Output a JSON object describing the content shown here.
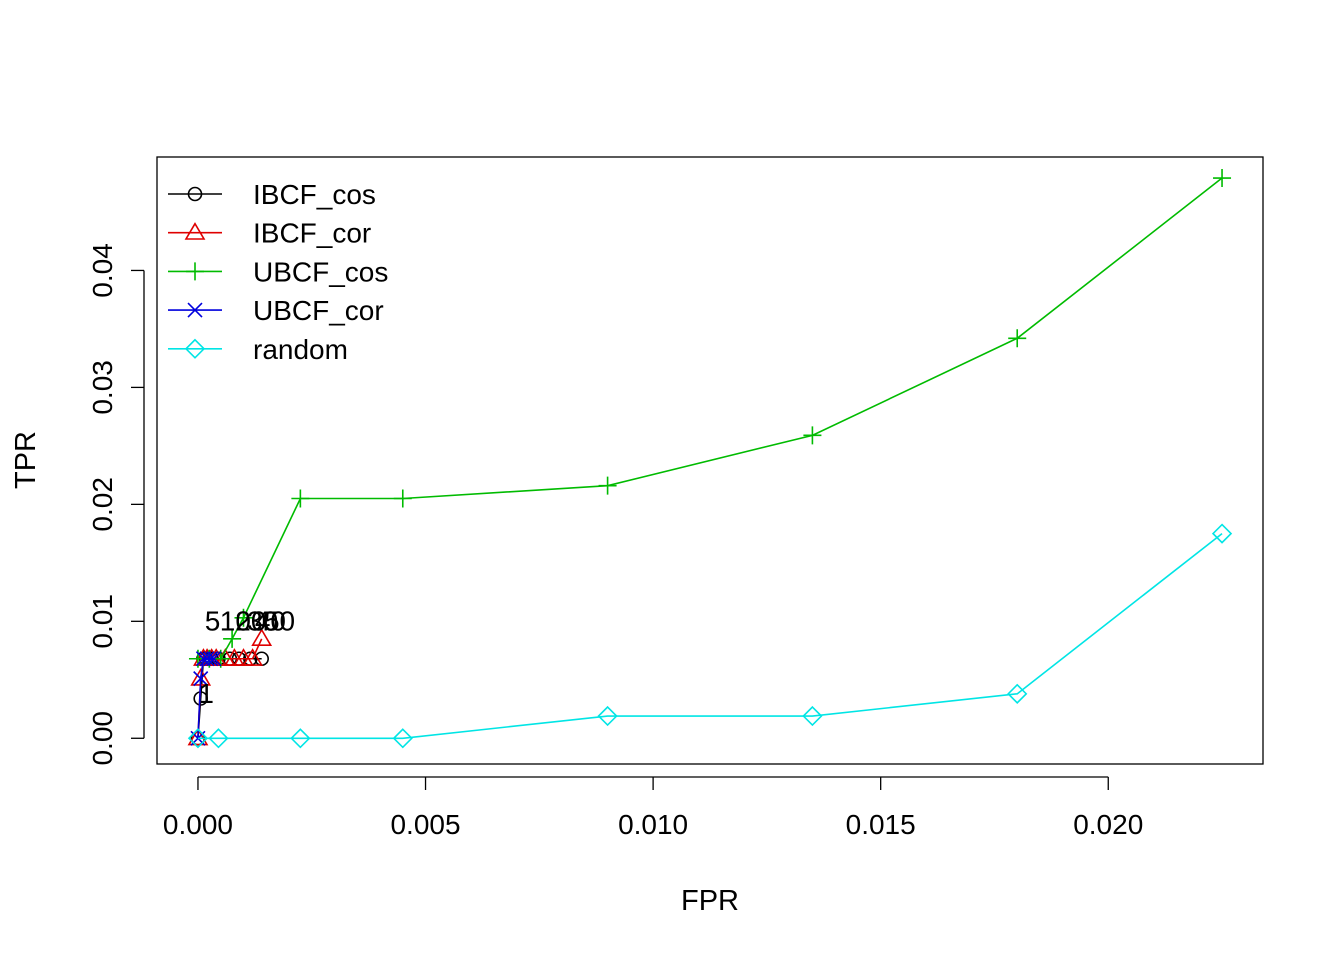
{
  "chart_data": {
    "type": "line",
    "title": "",
    "xlabel": "FPR",
    "ylabel": "TPR",
    "xlim": [
      -0.0009,
      0.0234
    ],
    "ylim": [
      -0.0022,
      0.0497
    ],
    "xticks": [
      0.0,
      0.005,
      0.01,
      0.015,
      0.02
    ],
    "xtick_labels": [
      "0.000",
      "0.005",
      "0.010",
      "0.015",
      "0.020"
    ],
    "yticks": [
      0.0,
      0.01,
      0.02,
      0.03,
      0.04
    ],
    "ytick_labels": [
      "0.00",
      "0.01",
      "0.02",
      "0.03",
      "0.04"
    ],
    "grid": false,
    "legend": "top-left",
    "series": [
      {
        "name": "IBCF_cos",
        "color": "#000000",
        "marker": "circle",
        "x": [
          0.0,
          6e-05,
          0.00012,
          0.00018,
          0.00025,
          0.0003,
          0.00045,
          0.0007,
          0.0009,
          0.00115,
          0.0014
        ],
        "y": [
          0.0,
          0.0034,
          0.0068,
          0.0068,
          0.0068,
          0.0068,
          0.0068,
          0.0068,
          0.0068,
          0.0068,
          0.0068
        ]
      },
      {
        "name": "IBCF_cor",
        "color": "#DF0000",
        "marker": "triangle",
        "x": [
          0.0,
          6e-05,
          0.00012,
          0.0002,
          0.0003,
          0.0004,
          0.0006,
          0.0008,
          0.001,
          0.0012,
          0.0014
        ],
        "y": [
          0.0,
          0.0051,
          0.0068,
          0.0068,
          0.0068,
          0.0068,
          0.0068,
          0.0068,
          0.0068,
          0.0068,
          0.0085
        ]
      },
      {
        "name": "UBCF_cos",
        "color": "#00BB00",
        "marker": "plus",
        "x": [
          0.0,
          0.00025,
          0.0005,
          0.00075,
          0.001,
          0.00225,
          0.0045,
          0.009,
          0.0135,
          0.018,
          0.0225
        ],
        "y": [
          0.0068,
          0.0068,
          0.0068,
          0.0085,
          0.0103,
          0.0205,
          0.0205,
          0.0216,
          0.0259,
          0.0342,
          0.0479
        ]
      },
      {
        "name": "UBCF_cor",
        "color": "#0000DD",
        "marker": "cross",
        "x": [
          0.0,
          6e-05,
          0.00012,
          0.0002,
          0.00028,
          0.00035
        ],
        "y": [
          0.0,
          0.0051,
          0.0068,
          0.0068,
          0.0068,
          0.0068
        ]
      },
      {
        "name": "random",
        "color": "#00E5E5",
        "marker": "diamond",
        "x": [
          0.0,
          0.00045,
          0.00225,
          0.0045,
          0.009,
          0.0135,
          0.018,
          0.0225
        ],
        "y": [
          0.0,
          0.0,
          0.0,
          0.0,
          0.0019,
          0.0019,
          0.0038,
          0.0175
        ]
      }
    ],
    "annotations": [
      {
        "text": "1",
        "x": 1e-05,
        "y": 0.003
      },
      {
        "text": "5",
        "x": 0.00015,
        "y": 0.0092
      },
      {
        "text": "10",
        "x": 0.00048,
        "y": 0.0092
      },
      {
        "text": "20",
        "x": 0.00082,
        "y": 0.0092
      },
      {
        "text": "30",
        "x": 0.00108,
        "y": 0.0092
      },
      {
        "text": "40",
        "x": 0.00125,
        "y": 0.0092
      },
      {
        "text": "50",
        "x": 0.00145,
        "y": 0.0092
      }
    ]
  }
}
